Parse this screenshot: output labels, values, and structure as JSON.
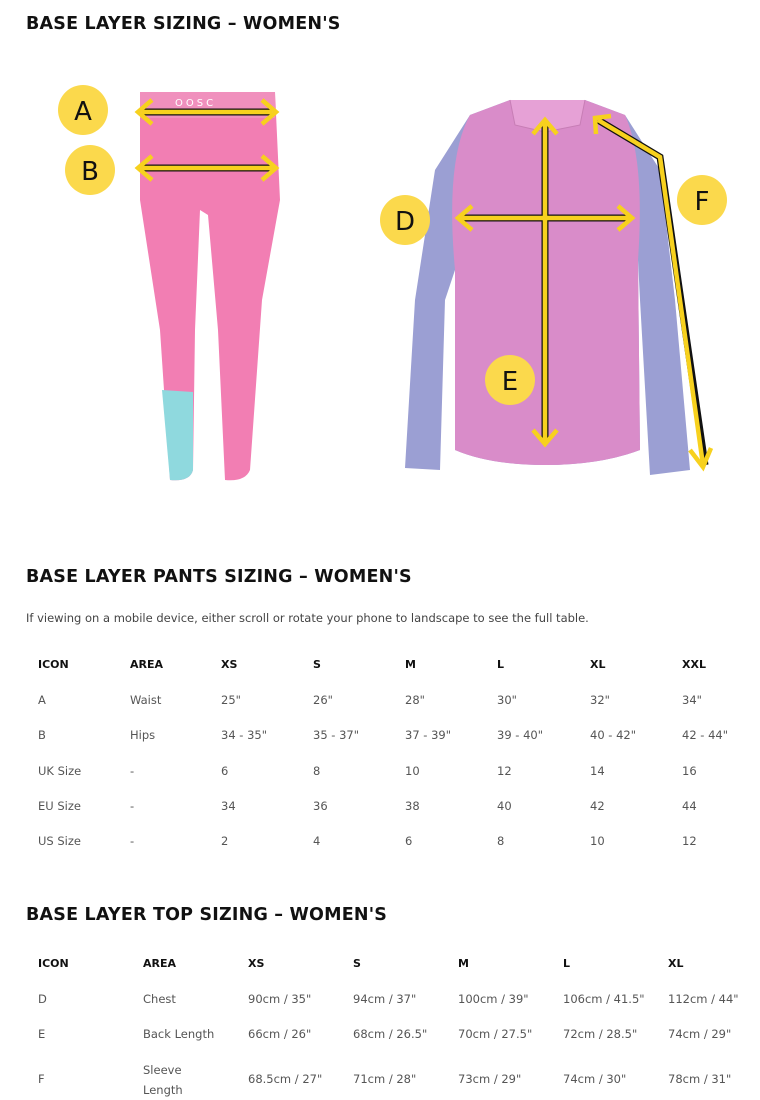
{
  "title": "BASE LAYER SIZING – WOMEN'S",
  "illustration": {
    "logo_text": "OOSC",
    "markers": [
      "A",
      "B",
      "D",
      "E",
      "F"
    ],
    "colors": {
      "arrow": "#f7d11e",
      "leggings": "#f27eb3",
      "leggings_cuff": "#8fd9de",
      "top_body": "#d98cc9",
      "top_sleeves": "#9b9fd3"
    }
  },
  "pants": {
    "title": "BASE LAYER PANTS SIZING – WOMEN'S",
    "note": "If viewing on a mobile device, either scroll or rotate your phone to landscape to see the full table.",
    "headers": [
      "ICON",
      "AREA",
      "XS",
      "S",
      "M",
      "L",
      "XL",
      "XXL"
    ],
    "rows": [
      [
        "A",
        "Waist",
        "25\"",
        "26\"",
        "28\"",
        "30\"",
        "32\"",
        "34\""
      ],
      [
        "B",
        "Hips",
        "34 - 35\"",
        "35 - 37\"",
        "37 - 39\"",
        "39 - 40\"",
        "40 - 42\"",
        "42 - 44\""
      ],
      [
        "UK Size",
        "-",
        "6",
        "8",
        "10",
        "12",
        "14",
        "16"
      ],
      [
        "EU Size",
        "-",
        "34",
        "36",
        "38",
        "40",
        "42",
        "44"
      ],
      [
        "US Size",
        "-",
        "2",
        "4",
        "6",
        "8",
        "10",
        "12"
      ]
    ]
  },
  "top": {
    "title": "BASE LAYER TOP SIZING – WOMEN'S",
    "headers": [
      "ICON",
      "AREA",
      "XS",
      "S",
      "M",
      "L",
      "XL"
    ],
    "rows": [
      [
        "D",
        "Chest",
        "90cm / 35\"",
        "94cm / 37\"",
        "100cm / 39\"",
        "106cm / 41.5\"",
        "112cm / 44\""
      ],
      [
        "E",
        "Back Length",
        "66cm / 26\"",
        "68cm / 26.5\"",
        "70cm / 27.5\"",
        "72cm / 28.5\"",
        "74cm / 29\""
      ],
      [
        "F",
        "Sleeve Length",
        "68.5cm / 27\"",
        "71cm / 28\"",
        "73cm / 29\"",
        "74cm / 30\"",
        "78cm / 31\""
      ]
    ]
  }
}
